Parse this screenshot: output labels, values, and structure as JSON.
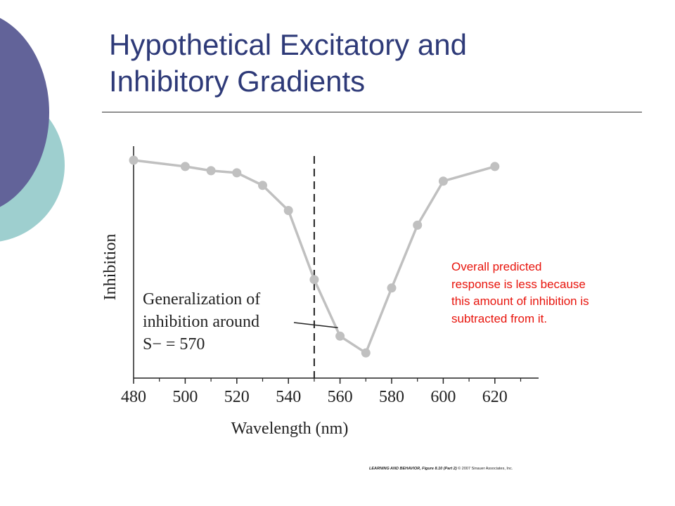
{
  "slide": {
    "title_lines": [
      "Hypothetical Excitatory and",
      "Inhibitory Gradients"
    ],
    "annotation_lines": [
      "Overall predicted",
      "response is less because",
      "this amount of inhibition is",
      "subtracted from it."
    ],
    "credit_bold": "LEARNING AND BEHAVIOR, Figure 8.10 (Part 2)",
    "credit_rest": " © 2007 Sinauer Associates, Inc.",
    "colors": {
      "title": "#2e3a78",
      "annotation": "#e8140c",
      "decor_purple": "#626399",
      "decor_teal": "#9ecfcf"
    }
  },
  "chart_data": {
    "type": "line",
    "xlabel": "Wavelength (nm)",
    "ylabel": "Inhibition",
    "xlim": [
      480,
      635
    ],
    "ylim": [
      0,
      1
    ],
    "x_ticks": [
      480,
      500,
      520,
      540,
      560,
      580,
      600,
      620
    ],
    "x": [
      480,
      500,
      510,
      520,
      530,
      540,
      550,
      560,
      570,
      580,
      590,
      600,
      620
    ],
    "series": [
      {
        "name": "",
        "values": [
          0.99,
          0.96,
          0.94,
          0.93,
          0.87,
          0.75,
          0.42,
          0.15,
          0.07,
          0.38,
          0.68,
          0.89,
          0.96
        ],
        "color": "#c0c0c0"
      }
    ],
    "reference_line": {
      "x": 550,
      "style": "dashed"
    },
    "label_lines": [
      "Generalization of",
      "inhibition around",
      "S− = 570"
    ],
    "label_points_to_x": 560,
    "grid": false
  }
}
